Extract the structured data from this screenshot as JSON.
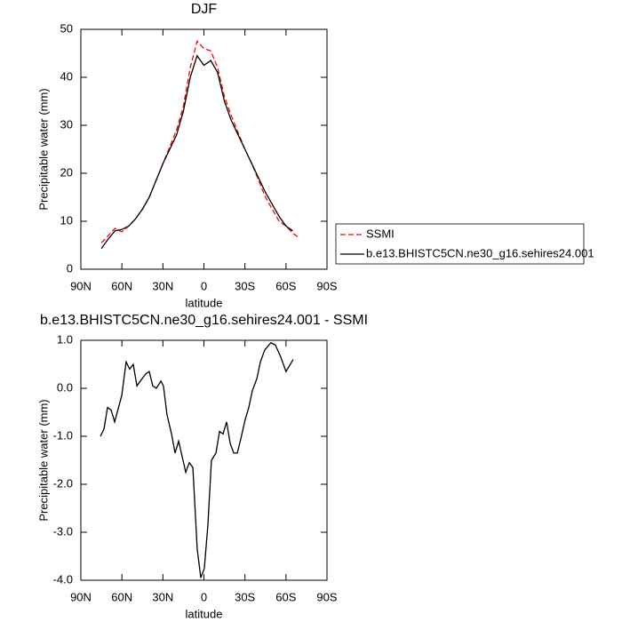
{
  "chart_data": [
    {
      "type": "line",
      "title": "DJF",
      "x_label": "latitude",
      "y_label": "Precipitable water (mm)",
      "x": [
        75,
        70,
        65,
        60,
        55,
        50,
        45,
        40,
        35,
        30,
        25,
        20,
        15,
        10,
        5,
        0,
        -5,
        -10,
        -15,
        -20,
        -25,
        -30,
        -35,
        -40,
        -45,
        -50,
        -55,
        -60,
        -65,
        -70
      ],
      "series": [
        {
          "name": "SSMI",
          "color": "#ff0000",
          "line_style": "dashed",
          "values": [
            5.5,
            7.0,
            8.5,
            7.8,
            9.0,
            10.5,
            12.5,
            15.0,
            18.5,
            22.0,
            25.5,
            29.0,
            34.0,
            42.0,
            47.5,
            46.0,
            45.5,
            42.0,
            36.0,
            32.0,
            28.5,
            25.0,
            22.0,
            18.5,
            15.0,
            12.5,
            10.0,
            9.0,
            7.5,
            6.5
          ]
        },
        {
          "name": "b.e13.BHISTC5CN.ne30_g16.sehires24.001",
          "color": "#000000",
          "line_style": "solid",
          "values": [
            4.3,
            6.3,
            8.0,
            8.3,
            9.0,
            10.5,
            12.5,
            15.0,
            18.5,
            22.0,
            25.0,
            28.0,
            33.0,
            40.0,
            44.5,
            42.5,
            43.5,
            41.0,
            35.0,
            31.0,
            28.0,
            25.0,
            22.0,
            19.0,
            16.0,
            13.5,
            11.0,
            9.0,
            8.0,
            null
          ]
        }
      ],
      "xlim": [
        90,
        -90
      ],
      "xticks": [
        {
          "value": 90,
          "label": "90N"
        },
        {
          "value": 60,
          "label": "60N"
        },
        {
          "value": 30,
          "label": "30N"
        },
        0,
        {
          "value": -30,
          "label": "30S"
        },
        {
          "value": -60,
          "label": "60S"
        },
        {
          "value": -90,
          "label": "90S"
        }
      ],
      "ylim": [
        0,
        50
      ],
      "yticks": [
        0,
        10,
        20,
        30,
        40,
        50
      ],
      "legend": "right"
    },
    {
      "type": "line",
      "title": "b.e13.BHISTC5CN.ne30_g16.sehires24.001 - SSMI",
      "x_label": "latitude",
      "y_label": "Precipitable water (mm)",
      "x": [
        75.7,
        73.1,
        70.5,
        67.9,
        65.3,
        60.1,
        56.9,
        54.3,
        51.7,
        49.0,
        46.5,
        42.6,
        40.0,
        37.4,
        34.8,
        31.5,
        29.6,
        27.0,
        23.7,
        21.1,
        18.5,
        13.3,
        10.7,
        8.1,
        4.9,
        2.3,
        -0.3,
        -2.9,
        -5.5,
        -8.8,
        -11.4,
        -14.0,
        -16.6,
        -19.2,
        -21.8,
        -24.4,
        -27.0,
        -30.2,
        -32.8,
        -35.4,
        -38.7,
        -41.3,
        -44.5,
        -49.0,
        -52.3,
        -56.2,
        -60.0,
        -65.3
      ],
      "values": [
        -1.0,
        -0.85,
        -0.4,
        -0.45,
        -0.7,
        -0.15,
        0.55,
        0.4,
        0.5,
        0.05,
        0.15,
        0.3,
        0.35,
        0.05,
        0.0,
        0.15,
        0.05,
        -0.55,
        -0.95,
        -1.35,
        -1.1,
        -1.75,
        -1.55,
        -1.65,
        -3.35,
        -3.95,
        -3.75,
        -2.85,
        -1.5,
        -1.35,
        -0.9,
        -0.95,
        -0.7,
        -1.15,
        -1.35,
        -1.35,
        -1.05,
        -0.65,
        -0.4,
        -0.05,
        0.2,
        0.55,
        0.8,
        0.95,
        0.9,
        0.65,
        0.35,
        0.6
      ],
      "color": "#000000",
      "xlim": [
        90,
        -90
      ],
      "xticks": [
        {
          "value": 90,
          "label": "90N"
        },
        {
          "value": 60,
          "label": "60N"
        },
        {
          "value": 30,
          "label": "30N"
        },
        0,
        {
          "value": -30,
          "label": "30S"
        },
        {
          "value": -60,
          "label": "60S"
        },
        {
          "value": -90,
          "label": "90S"
        }
      ],
      "ylim": [
        -4,
        1
      ],
      "yticks": [
        {
          "value": -4,
          "label": "-4.0"
        },
        {
          "value": -3,
          "label": "-3.0"
        },
        {
          "value": -2,
          "label": "-2.0"
        },
        {
          "value": -1,
          "label": "-1.0"
        },
        {
          "value": 0,
          "label": "0.0"
        },
        {
          "value": 1,
          "label": "1.0"
        }
      ]
    }
  ]
}
